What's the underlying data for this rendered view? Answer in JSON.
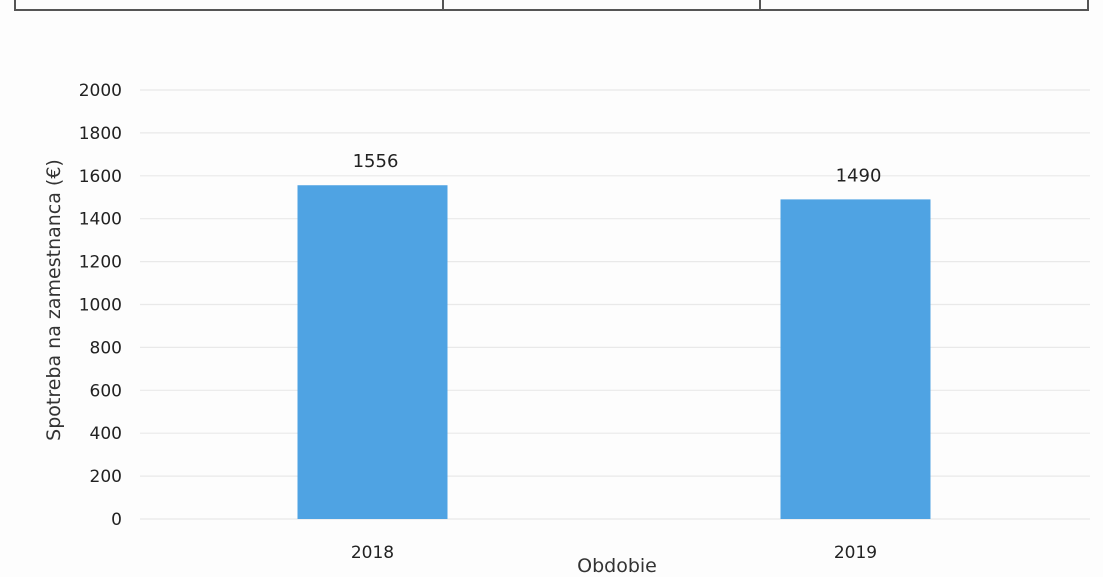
{
  "chart_data": {
    "type": "bar",
    "categories": [
      "2018",
      "2019"
    ],
    "values": [
      1556,
      1490
    ],
    "data_labels": [
      "1556",
      "1490"
    ],
    "title": "",
    "xlabel": "Obdobie",
    "ylabel": "Spotreba na zamestnanca (€)",
    "ylim": [
      0,
      2000
    ],
    "yticks": [
      0,
      200,
      400,
      600,
      800,
      1000,
      1200,
      1400,
      1600,
      1800,
      2000
    ],
    "ytick_labels": [
      "0",
      "200",
      "400",
      "600",
      "800",
      "1000",
      "1200",
      "1400",
      "1600",
      "1800",
      "2000"
    ],
    "grid": true,
    "legend": "none",
    "bar_color": "#4fa3e3",
    "grid_color": "#e9e9e9"
  }
}
